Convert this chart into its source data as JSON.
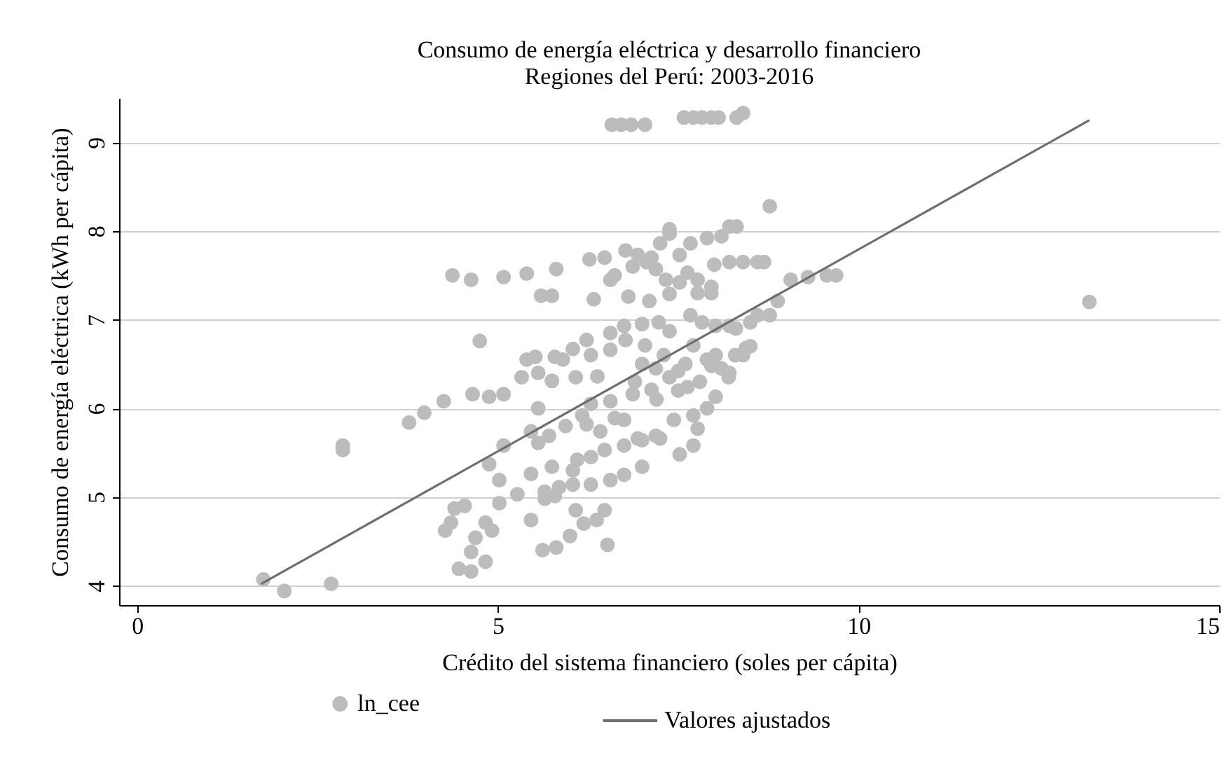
{
  "chart_data": {
    "type": "scatter",
    "title": "Consumo de energía eléctrica y desarrollo financiero",
    "subtitle": "Regiones del Perú: 2003-2016",
    "xlabel": "Crédito del sistema financiero (soles per cápita)",
    "ylabel": "Consumo de energía eléctrica (kWh per cápita)",
    "xlim": [
      -0.25,
      15
    ],
    "xticks": [
      0,
      5,
      10,
      15
    ],
    "ylim": [
      3.78,
      9.5
    ],
    "yticks": [
      4,
      5,
      6,
      7,
      8,
      9
    ],
    "grid": "y",
    "legend": "bottom",
    "series": [
      {
        "name": "ln_cee",
        "marker": "circle",
        "color": "#bcbcbe",
        "x": [
          6.58,
          6.71,
          6.85,
          7.04,
          7.58,
          7.71,
          7.83,
          7.96,
          8.06,
          8.31,
          8.4,
          8.77,
          7.38,
          8.21,
          8.31,
          4.37,
          4.63,
          5.08,
          5.4,
          5.81,
          6.27,
          6.48,
          6.77,
          6.94,
          7.13,
          7.25,
          7.38,
          7.52,
          7.67,
          7.9,
          8.1,
          8.21,
          8.4,
          8.6,
          8.69,
          8.0,
          5.6,
          5.75,
          6.33,
          6.56,
          6.62,
          6.81,
          6.87,
          7.06,
          7.19,
          7.1,
          7.38,
          7.33,
          7.52,
          7.63,
          7.77,
          7.96,
          7.77,
          7.96,
          4.75,
          7.67,
          7.83,
          8.02,
          8.21,
          8.5,
          8.77,
          8.88,
          9.06,
          9.3,
          9.56,
          9.69,
          6.75,
          7.0,
          7.23,
          6.56,
          6.77,
          6.23,
          6.04,
          5.9,
          5.4,
          5.52,
          5.79,
          6.29,
          6.56,
          7.04,
          7.38,
          7.71,
          8.02,
          8.29,
          8.44,
          3.77,
          3.98,
          4.25,
          4.65,
          4.88,
          5.08,
          5.33,
          5.56,
          5.75,
          6.08,
          6.38,
          5.56,
          5.08,
          5.46,
          5.56,
          5.71,
          5.94,
          6.17,
          6.29,
          6.23,
          6.42,
          6.62,
          6.75,
          6.56,
          6.87,
          7.13,
          7.38,
          7.63,
          7.9,
          6.94,
          7.19,
          7.44,
          7.71,
          7.77,
          7.52,
          7.71,
          6.48,
          6.75,
          7.0,
          7.25,
          6.1,
          6.29,
          6.56,
          6.75,
          7.0,
          5.75,
          6.04,
          6.29,
          5.65,
          5.85,
          6.04,
          5.65,
          5.79,
          4.88,
          5.02,
          5.02,
          5.27,
          5.46,
          4.4,
          4.54,
          4.27,
          4.35,
          4.83,
          4.92,
          4.69,
          4.63,
          4.46,
          4.63,
          4.83,
          5.46,
          6.08,
          6.19,
          6.37,
          6.48,
          5.62,
          5.81,
          6.0,
          6.52,
          7.19,
          7.5,
          7.96,
          8.02,
          8.21,
          1.75,
          2.04,
          2.69,
          2.85,
          2.85,
          13.2,
          7.0,
          7.3,
          7.6,
          7.9,
          8.1,
          8.4,
          7.5,
          7.8,
          8.2,
          6.9,
          7.2,
          8.5,
          8.3,
          8.6
        ],
        "values": [
          9.2,
          9.2,
          9.2,
          9.2,
          9.28,
          9.28,
          9.28,
          9.28,
          9.28,
          9.28,
          9.33,
          8.28,
          8.02,
          8.05,
          8.05,
          7.5,
          7.45,
          7.48,
          7.52,
          7.57,
          7.68,
          7.7,
          7.78,
          7.73,
          7.7,
          7.86,
          7.97,
          7.73,
          7.86,
          7.92,
          7.94,
          7.65,
          7.65,
          7.65,
          7.65,
          7.62,
          7.27,
          7.27,
          7.23,
          7.45,
          7.5,
          7.26,
          7.6,
          7.65,
          7.57,
          7.21,
          7.29,
          7.45,
          7.42,
          7.53,
          7.45,
          7.37,
          7.3,
          7.3,
          6.76,
          7.05,
          6.97,
          6.93,
          6.93,
          6.97,
          7.05,
          7.21,
          7.45,
          7.48,
          7.5,
          7.5,
          6.93,
          6.95,
          6.97,
          6.85,
          6.77,
          6.77,
          6.67,
          6.55,
          6.55,
          6.58,
          6.58,
          6.6,
          6.66,
          6.71,
          6.87,
          6.71,
          6.6,
          6.6,
          6.68,
          5.84,
          5.95,
          6.08,
          6.16,
          6.13,
          6.16,
          6.35,
          6.4,
          6.31,
          6.35,
          6.36,
          6.0,
          5.58,
          5.74,
          5.61,
          5.69,
          5.8,
          5.92,
          6.05,
          5.82,
          5.74,
          5.89,
          5.87,
          6.08,
          6.16,
          6.21,
          6.35,
          6.24,
          6.0,
          5.66,
          5.69,
          5.87,
          5.92,
          5.77,
          5.48,
          5.58,
          5.53,
          5.58,
          5.64,
          5.66,
          5.42,
          5.45,
          5.19,
          5.25,
          5.34,
          5.34,
          5.3,
          5.14,
          5.06,
          5.11,
          5.14,
          4.98,
          5.01,
          5.37,
          5.19,
          4.93,
          5.03,
          5.26,
          4.87,
          4.9,
          4.62,
          4.71,
          4.71,
          4.62,
          4.54,
          4.38,
          4.19,
          4.16,
          4.27,
          4.74,
          4.85,
          4.7,
          4.74,
          4.85,
          4.4,
          4.43,
          4.56,
          4.46,
          6.45,
          6.42,
          6.48,
          6.13,
          6.4,
          4.07,
          3.94,
          4.02,
          5.58,
          5.53,
          7.2,
          6.5,
          6.6,
          6.5,
          6.55,
          6.45,
          6.6,
          6.2,
          6.3,
          6.35,
          6.3,
          6.1,
          6.7,
          6.9,
          7.05
        ]
      },
      {
        "name": "Valores ajustados",
        "type": "line",
        "marker": "none",
        "line_style": "solid",
        "color": "#6e6e6e",
        "x": [
          1.72,
          13.2
        ],
        "values": [
          4.02,
          9.25
        ]
      }
    ]
  }
}
